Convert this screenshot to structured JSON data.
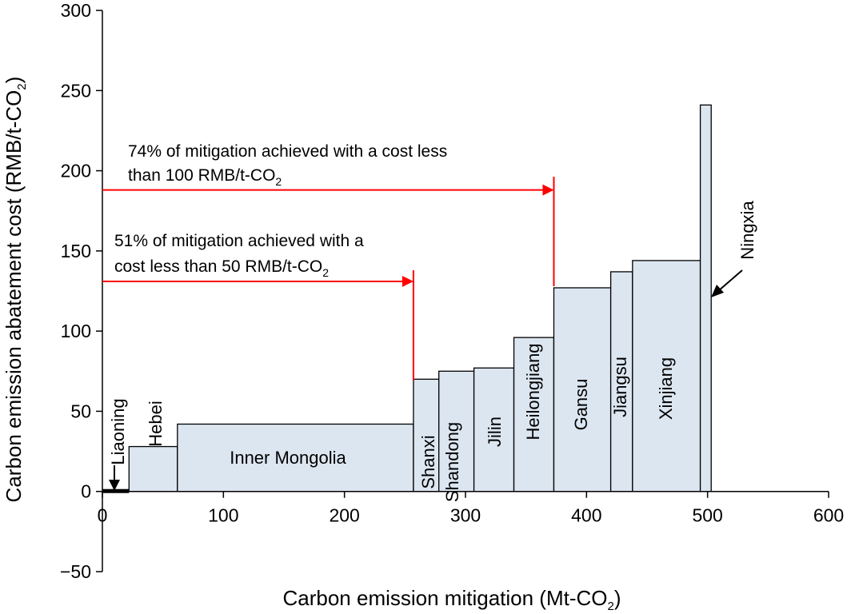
{
  "chart_data": {
    "type": "bar",
    "subtype": "marginal-abatement-cost-curve",
    "xlabel": "Carbon emission mitigation",
    "xunit": "(Mt-CO",
    "xunit_sub": "2",
    "xunit_end": ")",
    "ylabel": "Carbon emission abatement cost (RMB/t-CO",
    "ylabel_sub": "2",
    "ylabel_end": ")",
    "xlim": [
      0,
      600
    ],
    "ylim": [
      -50,
      300
    ],
    "x_ticks": [
      "0",
      "100",
      "200",
      "300",
      "400",
      "500",
      "600"
    ],
    "y_ticks": [
      "−50",
      "0",
      "50",
      "100",
      "150",
      "200",
      "250",
      "300"
    ],
    "bar_fill": "#dce6f1",
    "bar_stroke": "#000000",
    "grid": false,
    "blocks": [
      {
        "label": "Liaoning",
        "x_start": 0,
        "x_end": 22,
        "cost": 0
      },
      {
        "label": "Hebei",
        "x_start": 22,
        "x_end": 62,
        "cost": 28
      },
      {
        "label": "Inner Mongolia",
        "x_start": 62,
        "x_end": 257,
        "cost": 42
      },
      {
        "label": "Shanxi",
        "x_start": 257,
        "x_end": 278,
        "cost": 70
      },
      {
        "label": "Shandong",
        "x_start": 278,
        "x_end": 307,
        "cost": 75
      },
      {
        "label": "Jilin",
        "x_start": 307,
        "x_end": 340,
        "cost": 77
      },
      {
        "label": "Heilongjiang",
        "x_start": 340,
        "x_end": 373,
        "cost": 96
      },
      {
        "label": "Gansu",
        "x_start": 373,
        "x_end": 420,
        "cost": 127
      },
      {
        "label": "Jiangsu",
        "x_start": 420,
        "x_end": 438,
        "cost": 137
      },
      {
        "label": "Xinjiang",
        "x_start": 438,
        "x_end": 494,
        "cost": 144
      },
      {
        "label": "Ningxia",
        "x_start": 494,
        "x_end": 503,
        "cost": 241
      }
    ],
    "annotations": [
      {
        "id": "a74",
        "line1": "74% of mitigation achieved with a cost less",
        "line2": "than 100 RMB/t-CO",
        "line2_sub": "2",
        "arrow_y": 188,
        "arrow_x_end": 373,
        "color": "#ff0000"
      },
      {
        "id": "a51",
        "line1": "51% of mitigation achieved with a",
        "line2": "cost less than 50 RMB/t-CO",
        "line2_sub": "2",
        "arrow_y": 131,
        "arrow_x_end": 257,
        "color": "#ff0000"
      }
    ]
  }
}
